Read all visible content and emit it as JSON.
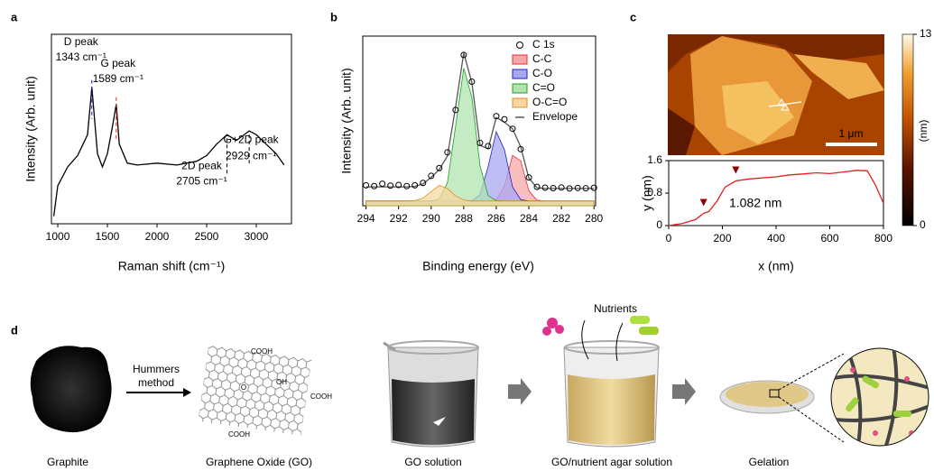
{
  "chart_data": [
    {
      "type": "line",
      "label": "a",
      "xlabel": "Raman shift (cm⁻¹)",
      "ylabel": "Intensity  (Arb. unit)",
      "x": [
        960,
        1000,
        1100,
        1200,
        1300,
        1343,
        1400,
        1450,
        1500,
        1550,
        1589,
        1620,
        1700,
        1800,
        2000,
        2200,
        2400,
        2500,
        2600,
        2705,
        2800,
        2929,
        3000,
        3100,
        3200,
        3280
      ],
      "values": [
        4,
        20,
        30,
        36,
        47,
        72,
        37,
        30,
        37,
        51,
        63,
        42,
        32,
        31,
        32,
        31,
        33,
        36,
        42,
        47,
        44,
        49,
        47,
        42,
        37,
        31
      ],
      "color": "#000000",
      "xlim": [
        936,
        3355
      ],
      "xticks": [
        1000,
        1500,
        2000,
        2500,
        3000
      ],
      "ylim": [
        0,
        100
      ],
      "peaks": [
        {
          "name": "D peak",
          "x": 1343,
          "x_label": "1343 cm⁻¹",
          "color": "#1a1acc"
        },
        {
          "name": "G peak",
          "x": 1589,
          "x_label": "1589 cm⁻¹",
          "color": "#e02020"
        },
        {
          "name": "2D peak",
          "x": 2705,
          "x_label": "2705 cm⁻¹",
          "color": "#000000"
        },
        {
          "name": "G+2D peak",
          "x": 2929,
          "x_label": "2929 cm⁻¹",
          "color": "#000000"
        }
      ]
    },
    {
      "type": "area",
      "label": "b",
      "xlabel": "Binding energy (eV)",
      "ylabel": "Intensity  (Arb. unit)",
      "x": [
        294,
        293.5,
        293,
        292.5,
        292,
        291.5,
        291,
        290.5,
        290,
        289.5,
        289,
        288.5,
        288,
        287.5,
        287,
        286.5,
        286,
        285.5,
        285,
        284.5,
        284,
        283.5,
        283,
        282.5,
        282,
        281.5,
        281,
        280.5,
        280
      ],
      "xlim": [
        294.2,
        279.9
      ],
      "xticks": [
        294,
        292,
        290,
        288,
        286,
        284,
        282,
        280
      ],
      "ylim": [
        -3,
        105
      ],
      "legend": "upper right",
      "series": [
        {
          "name": "C 1s",
          "color": "#000000",
          "marker": "circle",
          "values": [
            10,
            9.5,
            11,
            9.8,
            10.2,
            9.5,
            10,
            11.5,
            16,
            21,
            31,
            58,
            93,
            76,
            37,
            35,
            54,
            52,
            46,
            33,
            15,
            9,
            8.5,
            8.2,
            8.6,
            8,
            8.3,
            8.1,
            8.4
          ]
        },
        {
          "name": "C-C",
          "color": "#e03030",
          "fill": "#f6a8a8",
          "values": [
            0,
            0,
            0,
            0,
            0,
            0,
            0,
            0,
            0,
            0,
            0,
            0,
            0,
            0,
            0,
            0,
            0.9,
            9.5,
            29,
            25.6,
            6.6,
            0.5,
            0,
            0,
            0,
            0,
            0,
            0,
            0
          ]
        },
        {
          "name": "C-O",
          "color": "#2020c0",
          "fill": "#a8a8f0",
          "values": [
            0,
            0,
            0,
            0,
            0,
            0,
            0,
            0,
            0,
            0,
            0,
            0,
            0,
            0.3,
            4,
            21.9,
            44.1,
            32.7,
            8.9,
            0.9,
            0,
            0,
            0,
            0,
            0,
            0,
            0,
            0,
            0
          ]
        },
        {
          "name": "C=O",
          "color": "#20a020",
          "fill": "#b0e4b0",
          "values": [
            0,
            0,
            0,
            0,
            0,
            0,
            0,
            0,
            0,
            1.2,
            11.6,
            47.4,
            84.6,
            66,
            22.5,
            3.4,
            0.2,
            0,
            0,
            0,
            0,
            0,
            0,
            0,
            0,
            0,
            0,
            0,
            0
          ]
        },
        {
          "name": "O-C=O",
          "color": "#e09020",
          "fill": "#f8d8a0",
          "values": [
            0,
            0,
            0,
            0,
            0,
            0,
            0.3,
            1.9,
            6.1,
            9.9,
            8,
            3.2,
            0.7,
            0,
            0,
            0,
            0,
            0,
            0,
            0,
            0,
            0,
            0,
            0,
            0,
            0,
            0,
            0,
            0
          ]
        },
        {
          "name": "Envelope",
          "color": "#555555",
          "values": [
            9,
            9,
            9,
            9,
            9,
            9,
            9.3,
            10.9,
            15.1,
            20.1,
            28.6,
            59.6,
            94.3,
            75.3,
            35.5,
            33.3,
            53.2,
            50.2,
            45.9,
            34.5,
            14.6,
            8.5,
            8,
            8,
            8,
            8,
            8,
            8,
            8
          ]
        }
      ]
    },
    {
      "type": "line",
      "label": "c",
      "xlabel": "x (nm)",
      "ylabel": "y (nm)",
      "x": [
        0,
        50,
        100,
        130,
        150,
        180,
        210,
        250,
        300,
        400,
        450,
        500,
        550,
        600,
        650,
        700,
        740,
        770,
        800
      ],
      "values": [
        0,
        0.05,
        0.15,
        0.3,
        0.35,
        0.6,
        0.95,
        1.1,
        1.15,
        1.2,
        1.25,
        1.27,
        1.3,
        1.28,
        1.32,
        1.36,
        1.35,
        1,
        0.55
      ],
      "color": "#e02020",
      "xlim": [
        0,
        800
      ],
      "xticks": [
        0,
        200,
        400,
        600,
        800
      ],
      "ylim": [
        0,
        1.6
      ],
      "yticks": [
        0,
        0.8,
        1.6
      ],
      "markers_x": [
        130,
        250
      ],
      "annotation": "1.082 nm",
      "scale_bar": "1 μm",
      "colorbar": {
        "lim": [
          0,
          13
        ],
        "ticks": [
          0,
          13
        ],
        "label": "(nm)"
      }
    }
  ],
  "scheme": {
    "label": "d",
    "steps": [
      "Graphite",
      "Graphene Oxide (GO)",
      "GO solution",
      "GO/nutrient agar solution",
      "Gelation"
    ],
    "arrow_label": [
      "Hummers",
      "method"
    ],
    "nutrients": "Nutrients",
    "groups": [
      "COOH",
      "O",
      "OH",
      "COOH",
      "COOH"
    ]
  }
}
